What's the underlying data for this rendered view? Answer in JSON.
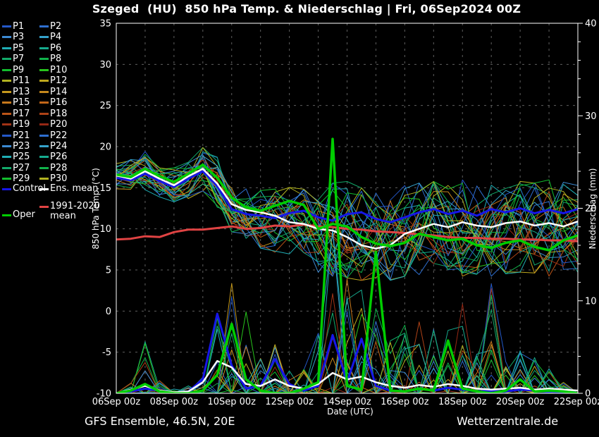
{
  "header": {
    "title": "Szeged  (HU)  850 hPa Temp. & Niederschlag | Fri, 06Sep2024 00Z"
  },
  "footer": {
    "left": "GFS Ensemble, 46.5N, 20E",
    "right": "Wetterzentrale.de"
  },
  "legend": {
    "members": [
      {
        "label": "P1",
        "color": "#2458c8"
      },
      {
        "label": "P2",
        "color": "#2e6fd0"
      },
      {
        "label": "P3",
        "color": "#3c8ad2"
      },
      {
        "label": "P4",
        "color": "#35a3cc"
      },
      {
        "label": "P5",
        "color": "#1fadb4"
      },
      {
        "label": "P6",
        "color": "#16ab8e"
      },
      {
        "label": "P7",
        "color": "#12aa6a"
      },
      {
        "label": "P8",
        "color": "#10b24a"
      },
      {
        "label": "P9",
        "color": "#12bd2e"
      },
      {
        "label": "P10",
        "color": "#28c41d"
      },
      {
        "label": "P11",
        "color": "#b2b320"
      },
      {
        "label": "P12",
        "color": "#bfa81e"
      },
      {
        "label": "P13",
        "color": "#c4981d"
      },
      {
        "label": "P14",
        "color": "#c5881c"
      },
      {
        "label": "P15",
        "color": "#c7781b"
      },
      {
        "label": "P16",
        "color": "#c26619"
      },
      {
        "label": "P17",
        "color": "#bb5418"
      },
      {
        "label": "P18",
        "color": "#ae4217"
      },
      {
        "label": "P19",
        "color": "#a23316"
      },
      {
        "label": "P20",
        "color": "#962815"
      },
      {
        "label": "P21",
        "color": "#2458c8"
      },
      {
        "label": "P22",
        "color": "#2e6fd0"
      },
      {
        "label": "P23",
        "color": "#3c8ad2"
      },
      {
        "label": "P24",
        "color": "#35a3cc"
      },
      {
        "label": "P25",
        "color": "#1fadb4"
      },
      {
        "label": "P26",
        "color": "#16ab8e"
      },
      {
        "label": "P27",
        "color": "#12aa6a"
      },
      {
        "label": "P28",
        "color": "#10b24a"
      },
      {
        "label": "P29",
        "color": "#12bd2e"
      },
      {
        "label": "P30",
        "color": "#b2b320"
      }
    ],
    "extras": [
      {
        "label": "Control",
        "color": "#1616e8",
        "col": 0,
        "row": "control"
      },
      {
        "label": "Ens. mean",
        "color": "#ffffff",
        "col": 1,
        "row": "control"
      },
      {
        "label": "1991-2020",
        "label2": "mean",
        "color": "#e04343",
        "col": 1,
        "row": "clim"
      },
      {
        "label": "Oper",
        "color": "#00cd00",
        "col": 0,
        "row": "oper"
      }
    ]
  },
  "chart_data": {
    "type": "line",
    "title": "Szeged  (HU)  850 hPa Temp. & Niederschlag | Fri, 06Sep2024 00Z",
    "xlabel": "Date (UTC)",
    "x_tick_labels": [
      "06Sep 00z",
      "08Sep 00z",
      "10Sep 00z",
      "12Sep 00z",
      "14Sep 00z",
      "16Sep 00z",
      "18Sep 00z",
      "20Sep 00z",
      "22Sep 00z"
    ],
    "x_range_days": [
      0,
      16
    ],
    "x_major_tick_days": 2,
    "x_minor_grid_days": 1,
    "step_days": 0.5,
    "y_left": {
      "label": "850 hPa Temp. (°C)",
      "min": -10,
      "max": 35,
      "tick_step": 5
    },
    "y_right": {
      "label": "Niederschlag (mm)",
      "min": 0,
      "max": 40,
      "tick_step": 10,
      "minor_step": 2
    },
    "grid": true,
    "colors": {
      "control": "#1616e8",
      "ens_mean": "#ffffff",
      "clim_mean": "#e04343",
      "oper": "#00cd00",
      "grid": "#5f5f5f",
      "frame": "#ffffff"
    },
    "series_temp": {
      "ens_mean": [
        16.5,
        16.1,
        17.0,
        16.1,
        15.3,
        16.4,
        17.3,
        15.5,
        13.0,
        12.3,
        12.0,
        11.6,
        10.8,
        10.6,
        10.0,
        9.8,
        9.0,
        8.0,
        7.6,
        8.0,
        9.4,
        10.0,
        10.6,
        10.2,
        10.8,
        10.4,
        10.2,
        10.7,
        10.9,
        10.4,
        10.7,
        10.3,
        10.9
      ],
      "control": [
        16.2,
        15.9,
        16.7,
        15.8,
        15.1,
        16.1,
        17.0,
        15.2,
        12.4,
        11.8,
        11.6,
        11.3,
        11.9,
        12.2,
        11.4,
        11.0,
        11.8,
        12.0,
        11.2,
        10.8,
        11.4,
        12.0,
        12.4,
        11.8,
        12.2,
        11.6,
        12.4,
        12.0,
        12.5,
        11.9,
        12.3,
        11.9,
        12.4
      ],
      "oper": [
        16.6,
        16.3,
        17.3,
        16.4,
        15.7,
        16.7,
        17.8,
        16.2,
        13.8,
        12.6,
        12.2,
        12.8,
        13.4,
        12.9,
        10.0,
        10.6,
        10.3,
        9.0,
        8.2,
        7.9,
        8.3,
        9.4,
        9.0,
        8.6,
        8.8,
        8.0,
        7.7,
        8.3,
        8.6,
        7.8,
        7.4,
        8.6,
        9.2
      ],
      "clim_mean": [
        8.7,
        8.8,
        9.1,
        9.0,
        9.6,
        9.9,
        9.9,
        10.1,
        10.3,
        10.0,
        10.1,
        10.4,
        10.3,
        10.5,
        10.3,
        10.2,
        10.0,
        9.9,
        9.7,
        9.6,
        9.5,
        9.3,
        9.2,
        9.0,
        8.9,
        8.9,
        8.8,
        8.8,
        8.7,
        8.7,
        8.6,
        8.6,
        8.5
      ],
      "envelope_min": [
        14.8,
        14.5,
        14.2,
        13.8,
        13.2,
        13.6,
        14.5,
        12.5,
        9.5,
        8.5,
        7.5,
        7.0,
        6.5,
        6.0,
        4.5,
        4.0,
        3.8,
        3.5,
        3.2,
        3.5,
        4.0,
        4.2,
        4.0,
        3.8,
        4.0,
        4.2,
        4.0,
        4.3,
        4.5,
        4.2,
        4.0,
        4.3,
        4.5
      ],
      "envelope_max": [
        18.0,
        18.5,
        19.5,
        18.0,
        17.5,
        18.2,
        20.0,
        19.0,
        16.0,
        15.0,
        14.8,
        15.0,
        15.2,
        15.0,
        15.5,
        15.8,
        16.0,
        15.2,
        15.0,
        15.3,
        15.5,
        15.8,
        16.0,
        15.5,
        16.2,
        15.8,
        16.0,
        16.3,
        16.0,
        15.8,
        16.2,
        15.9,
        15.5
      ]
    },
    "series_precip": {
      "ens_mean": [
        0,
        0.4,
        0.8,
        0.3,
        0.1,
        0.2,
        1.2,
        3.5,
        2.8,
        1.0,
        0.8,
        1.5,
        0.8,
        0.5,
        1.0,
        2.2,
        1.5,
        1.8,
        1.2,
        0.8,
        0.6,
        0.9,
        0.7,
        1.0,
        0.8,
        0.5,
        0.4,
        0.5,
        0.6,
        0.4,
        0.5,
        0.4,
        0.3
      ],
      "control": [
        0,
        0.2,
        0.5,
        0.3,
        0,
        0.2,
        1.5,
        8.6,
        3.0,
        0.5,
        0.8,
        3.7,
        1.0,
        0.3,
        0.8,
        6.3,
        1.2,
        5.9,
        0.8,
        0.3,
        0.2,
        0.5,
        0.3,
        0.6,
        0.4,
        0.2,
        0.3,
        0.2,
        0.4,
        0.3,
        0.2,
        0.1,
        0
      ],
      "oper": [
        0,
        0.3,
        1.0,
        0.2,
        0,
        0,
        0.3,
        2.0,
        7.5,
        1.5,
        0.3,
        0,
        0,
        0.5,
        1.2,
        27.5,
        0.8,
        0.4,
        15.3,
        0.3,
        0.2,
        0.5,
        0.3,
        5.7,
        0.5,
        0.2,
        0,
        0.3,
        1.5,
        0.2,
        0.3,
        0.2,
        0
      ],
      "envelope_max": [
        0.5,
        2,
        6.5,
        1.5,
        0.5,
        1,
        5,
        12,
        13,
        9,
        5,
        6,
        4,
        3,
        9,
        20,
        14,
        12,
        10,
        6,
        8,
        9,
        7,
        8,
        12,
        5,
        12,
        4,
        5,
        4,
        3,
        1.5,
        0.5
      ]
    },
    "members": {
      "count": 30
    }
  }
}
